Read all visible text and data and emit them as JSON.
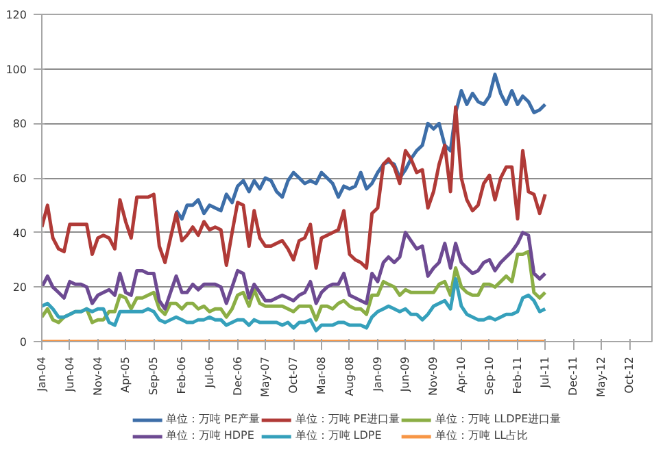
{
  "chart_data": {
    "type": "line",
    "x": [
      "2004-01",
      "2004-02",
      "2004-03",
      "2004-04",
      "2004-05",
      "2004-06",
      "2004-07",
      "2004-08",
      "2004-09",
      "2004-10",
      "2004-11",
      "2004-12",
      "2005-01",
      "2005-02",
      "2005-03",
      "2005-04",
      "2005-05",
      "2005-06",
      "2005-07",
      "2005-08",
      "2005-09",
      "2005-10",
      "2005-11",
      "2005-12",
      "2006-01",
      "2006-02",
      "2006-03",
      "2006-04",
      "2006-05",
      "2006-06",
      "2006-07",
      "2006-08",
      "2006-09",
      "2006-10",
      "2006-11",
      "2006-12",
      "2007-01",
      "2007-02",
      "2007-03",
      "2007-04",
      "2007-05",
      "2007-06",
      "2007-07",
      "2007-08",
      "2007-09",
      "2007-10",
      "2007-11",
      "2007-12",
      "2008-01",
      "2008-02",
      "2008-03",
      "2008-04",
      "2008-05",
      "2008-06",
      "2008-07",
      "2008-08",
      "2008-09",
      "2008-10",
      "2008-11",
      "2008-12",
      "2009-01",
      "2009-02",
      "2009-03",
      "2009-04",
      "2009-05",
      "2009-06",
      "2009-07",
      "2009-08",
      "2009-09",
      "2009-10",
      "2009-11",
      "2009-12",
      "2010-01",
      "2010-02",
      "2010-03",
      "2010-04",
      "2010-05",
      "2010-06",
      "2010-07",
      "2010-08",
      "2010-09",
      "2010-10",
      "2010-11",
      "2010-12",
      "2011-01",
      "2011-02",
      "2011-03",
      "2011-04",
      "2011-05",
      "2011-06",
      "2011-07"
    ],
    "xlim": [
      "2004-01",
      "2013-02"
    ],
    "xticks": [
      {
        "value": "2004-01",
        "label": "Jan-04"
      },
      {
        "value": "2004-06",
        "label": "Jun-04"
      },
      {
        "value": "2004-11",
        "label": "Nov-04"
      },
      {
        "value": "2005-04",
        "label": "Apr-05"
      },
      {
        "value": "2005-09",
        "label": "Sep-05"
      },
      {
        "value": "2006-02",
        "label": "Feb-06"
      },
      {
        "value": "2006-07",
        "label": "Jul-06"
      },
      {
        "value": "2006-12",
        "label": "Dec-06"
      },
      {
        "value": "2007-05",
        "label": "May-07"
      },
      {
        "value": "2007-10",
        "label": "Oct-07"
      },
      {
        "value": "2008-03",
        "label": "Mar-08"
      },
      {
        "value": "2008-08",
        "label": "Aug-08"
      },
      {
        "value": "2009-01",
        "label": "Jan-09"
      },
      {
        "value": "2009-06",
        "label": "Jun-09"
      },
      {
        "value": "2009-11",
        "label": "Nov-09"
      },
      {
        "value": "2010-04",
        "label": "Apr-10"
      },
      {
        "value": "2010-09",
        "label": "Sep-10"
      },
      {
        "value": "2011-02",
        "label": "Feb-11"
      },
      {
        "value": "2011-07",
        "label": "Jul-11"
      },
      {
        "value": "2011-12",
        "label": "Dec-11"
      },
      {
        "value": "2012-05",
        "label": "May-12"
      },
      {
        "value": "2012-10",
        "label": "Oct-12"
      }
    ],
    "ylim": [
      0,
      120
    ],
    "yticks": [
      0,
      20,
      40,
      60,
      80,
      100,
      120
    ],
    "grid": "y",
    "legend": "bottom",
    "marker": "none",
    "line_style": "solid",
    "series": [
      {
        "name": "单位：万吨 PE产量",
        "color": "#3d6ea8",
        "values": [
          null,
          null,
          null,
          null,
          null,
          null,
          null,
          null,
          null,
          null,
          null,
          null,
          null,
          null,
          null,
          null,
          null,
          null,
          null,
          null,
          null,
          null,
          null,
          null,
          48,
          45,
          50,
          50,
          52,
          47,
          50,
          49,
          48,
          54,
          51,
          57,
          59,
          55,
          59,
          56,
          60,
          59,
          55,
          53,
          59,
          62,
          60,
          58,
          59,
          58,
          62,
          60,
          58,
          53,
          57,
          56,
          57,
          62,
          56,
          58,
          62,
          65,
          66,
          65,
          60,
          63,
          67,
          70,
          72,
          80,
          78,
          80,
          72,
          70,
          84,
          92,
          87,
          91,
          88,
          87,
          90,
          98,
          91,
          87,
          92,
          87,
          90,
          88,
          84,
          85,
          87
        ]
      },
      {
        "name": "单位：万吨 PE进口量",
        "color": "#b03a37",
        "values": [
          42,
          50,
          38,
          34,
          33,
          43,
          43,
          43,
          43,
          32,
          38,
          39,
          38,
          34,
          52,
          44,
          38,
          53,
          53,
          53,
          54,
          35,
          29,
          38,
          47,
          37,
          39,
          42,
          39,
          44,
          41,
          42,
          41,
          28,
          40,
          51,
          50,
          35,
          48,
          38,
          35,
          35,
          36,
          37,
          34,
          30,
          37,
          38,
          43,
          27,
          38,
          39,
          40,
          41,
          48,
          32,
          30,
          29,
          27,
          47,
          49,
          65,
          67,
          64,
          58,
          70,
          67,
          62,
          63,
          49,
          55,
          65,
          72,
          55,
          86,
          60,
          52,
          48,
          50,
          58,
          61,
          52,
          60,
          64,
          64,
          45,
          70,
          55,
          54,
          47,
          54
        ]
      },
      {
        "name": "单位：万吨 LLDPE进口量",
        "color": "#8bae45",
        "values": [
          9,
          12,
          8,
          7,
          9,
          10,
          11,
          11,
          12,
          7,
          8,
          8,
          11,
          11,
          17,
          16,
          12,
          16,
          16,
          17,
          18,
          12,
          10,
          14,
          14,
          12,
          14,
          14,
          12,
          13,
          11,
          12,
          12,
          9,
          12,
          17,
          18,
          13,
          19,
          14,
          13,
          13,
          13,
          13,
          12,
          11,
          13,
          13,
          13,
          8,
          13,
          13,
          12,
          14,
          15,
          13,
          12,
          12,
          10,
          17,
          17,
          22,
          21,
          20,
          17,
          19,
          18,
          18,
          18,
          18,
          18,
          21,
          22,
          17,
          27,
          20,
          18,
          17,
          17,
          21,
          21,
          20,
          22,
          24,
          22,
          32,
          32,
          33,
          18,
          16,
          18
        ]
      },
      {
        "name": "单位：万吨 HDPE",
        "color": "#6d4a92",
        "values": [
          20,
          24,
          20,
          18,
          16,
          22,
          21,
          21,
          20,
          14,
          17,
          18,
          19,
          17,
          25,
          18,
          17,
          26,
          26,
          25,
          25,
          15,
          12,
          18,
          24,
          18,
          18,
          21,
          19,
          21,
          21,
          21,
          20,
          14,
          20,
          26,
          25,
          16,
          21,
          18,
          15,
          15,
          16,
          17,
          16,
          15,
          17,
          18,
          22,
          14,
          18,
          20,
          21,
          21,
          25,
          17,
          16,
          15,
          14,
          25,
          22,
          29,
          31,
          29,
          31,
          40,
          37,
          34,
          35,
          24,
          27,
          29,
          36,
          27,
          36,
          29,
          27,
          25,
          26,
          29,
          30,
          26,
          29,
          31,
          33,
          36,
          40,
          39,
          25,
          23,
          25
        ]
      },
      {
        "name": "单位：万吨 LDPE",
        "color": "#35a0bb",
        "values": [
          13,
          14,
          12,
          9,
          9,
          10,
          11,
          11,
          12,
          11,
          12,
          12,
          7,
          6,
          11,
          11,
          11,
          11,
          11,
          12,
          11,
          8,
          7,
          8,
          9,
          8,
          7,
          7,
          8,
          8,
          9,
          8,
          8,
          6,
          7,
          8,
          8,
          6,
          8,
          7,
          7,
          7,
          7,
          6,
          7,
          5,
          7,
          7,
          8,
          4,
          6,
          6,
          6,
          7,
          7,
          6,
          6,
          6,
          5,
          9,
          11,
          12,
          13,
          12,
          11,
          12,
          10,
          10,
          8,
          10,
          13,
          14,
          15,
          12,
          23,
          13,
          10,
          9,
          8,
          8,
          9,
          8,
          9,
          10,
          10,
          11,
          16,
          17,
          15,
          11,
          12
        ]
      },
      {
        "name": "单位：万吨 LL占比",
        "color": "#f79646",
        "values": [
          0,
          0,
          0,
          0,
          0,
          0,
          0,
          0,
          0,
          0,
          0,
          0,
          0,
          0,
          0,
          0,
          0,
          0,
          0,
          0,
          0,
          0,
          0,
          0,
          0,
          0,
          0,
          0,
          0,
          0,
          0,
          0,
          0,
          0,
          0,
          0,
          0,
          0,
          0,
          0,
          0,
          0,
          0,
          0,
          0,
          0,
          0,
          0,
          0,
          0,
          0,
          0,
          0,
          0,
          0,
          0,
          0,
          0,
          0,
          0,
          0,
          0,
          0,
          0,
          0,
          0,
          0,
          0,
          0,
          0,
          0,
          0,
          0,
          0,
          0,
          0,
          0,
          0,
          0,
          0,
          0,
          0,
          0,
          0,
          0,
          0,
          0,
          0,
          0,
          0,
          0
        ]
      }
    ]
  }
}
